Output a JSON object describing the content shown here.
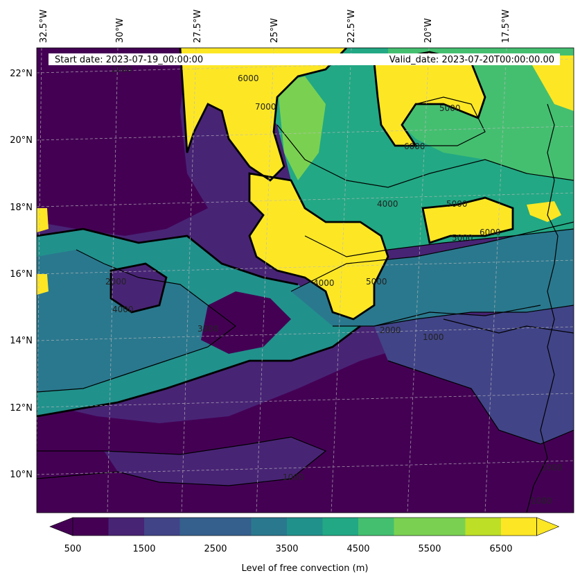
{
  "map": {
    "start_date": "Start date: 2023-07-19_00:00:00",
    "valid_date": "Valid_date: 2023-07-20T00:00:00.00",
    "lon_labels": [
      "32.5°W",
      "30°W",
      "27.5°W",
      "25°W",
      "22.5°W",
      "20°W",
      "17.5°W"
    ],
    "lat_labels": [
      "22°N",
      "20°N",
      "18°N",
      "16°N",
      "14°N",
      "12°N",
      "10°N"
    ],
    "contour_labels": [
      "1000",
      "6000",
      "7000",
      "5000",
      "6000",
      "5000",
      "4000",
      "5000",
      "6000",
      "4000",
      "5000",
      "4000",
      "2000",
      "3000",
      "1000",
      "2000",
      "1000",
      "1000",
      "1000"
    ],
    "colors": {
      "levels": [
        "#440154",
        "#482475",
        "#414487",
        "#355f8d",
        "#2a788e",
        "#21918c",
        "#22a884",
        "#44bf70",
        "#7ad151",
        "#bddf26",
        "#fde725"
      ],
      "coast": "#000000"
    }
  },
  "colorbar": {
    "ticks": [
      "500",
      "1500",
      "2500",
      "3500",
      "4500",
      "5500",
      "6500"
    ],
    "label": "Level of free convection (m)"
  }
}
